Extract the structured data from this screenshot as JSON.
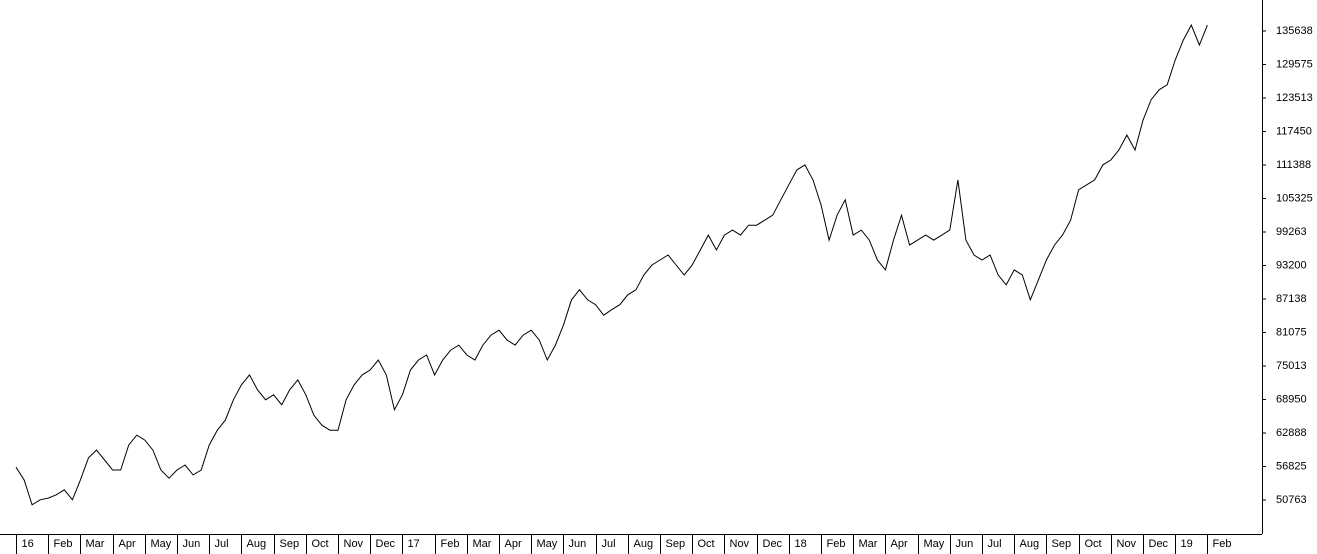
{
  "chart_data": {
    "type": "line",
    "categories": [
      "16",
      null,
      null,
      null,
      "Feb",
      null,
      null,
      null,
      "Mar",
      null,
      null,
      null,
      "Apr",
      null,
      null,
      null,
      "May",
      null,
      null,
      null,
      "Jun",
      null,
      null,
      null,
      "Jul",
      null,
      null,
      null,
      "Aug",
      null,
      null,
      null,
      "Sep",
      null,
      null,
      null,
      "Oct",
      null,
      null,
      null,
      "Nov",
      null,
      null,
      null,
      "Dec",
      null,
      null,
      null,
      "17",
      null,
      null,
      null,
      "Feb",
      null,
      null,
      null,
      "Mar",
      null,
      null,
      null,
      "Apr",
      null,
      null,
      null,
      "May",
      null,
      null,
      null,
      "Jun",
      null,
      null,
      null,
      "Jul",
      null,
      null,
      null,
      "Aug",
      null,
      null,
      null,
      "Sep",
      null,
      null,
      null,
      "Oct",
      null,
      null,
      null,
      "Nov",
      null,
      null,
      null,
      "Dec",
      null,
      null,
      null,
      "18",
      null,
      null,
      null,
      "Feb",
      null,
      null,
      null,
      "Mar",
      null,
      null,
      null,
      "Apr",
      null,
      null,
      null,
      "May",
      null,
      null,
      null,
      "Jun",
      null,
      null,
      null,
      "Jul",
      null,
      null,
      null,
      "Aug",
      null,
      null,
      null,
      "Sep",
      null,
      null,
      null,
      "Oct",
      null,
      null,
      null,
      "Nov",
      null,
      null,
      null,
      "Dec",
      null,
      null,
      null,
      "19",
      null,
      null,
      null,
      "Feb"
    ],
    "values": [
      56700,
      54400,
      49900,
      50800,
      51100,
      51700,
      52600,
      50800,
      54400,
      58400,
      59800,
      58000,
      56200,
      56200,
      60700,
      62500,
      61600,
      59800,
      56200,
      54700,
      56200,
      57100,
      55300,
      56200,
      60700,
      63400,
      65200,
      68900,
      71600,
      73400,
      70700,
      68900,
      69800,
      68000,
      70700,
      72500,
      69800,
      66100,
      64300,
      63400,
      63400,
      68900,
      71600,
      73400,
      74300,
      76100,
      73400,
      67100,
      69800,
      74300,
      76100,
      77000,
      73400,
      76100,
      77900,
      78800,
      77000,
      76100,
      78800,
      80600,
      81500,
      79700,
      78800,
      80600,
      81500,
      79700,
      76100,
      78800,
      82400,
      87000,
      88800,
      87000,
      86100,
      84200,
      85200,
      86100,
      87900,
      88800,
      91500,
      93300,
      94200,
      95100,
      93300,
      91500,
      93300,
      96000,
      98700,
      96000,
      98700,
      99600,
      98700,
      100500,
      100500,
      101400,
      102300,
      105100,
      107800,
      110500,
      111400,
      108700,
      104200,
      97800,
      102300,
      105100,
      98700,
      99600,
      97800,
      94200,
      92400,
      97800,
      102300,
      96900,
      97800,
      98700,
      97800,
      98700,
      99600,
      108700,
      97800,
      95100,
      94200,
      95100,
      91500,
      89700,
      92400,
      91500,
      87000,
      90600,
      94200,
      96900,
      98700,
      101400,
      106900,
      107800,
      108700,
      111400,
      112300,
      114100,
      116800,
      114100,
      119500,
      123200,
      125000,
      125900,
      130400,
      134000,
      136700,
      133100,
      136700
    ],
    "color": "#000000",
    "ylim": [
      44610,
      141250
    ],
    "yticks": [
      50763,
      56825,
      62888,
      68950,
      75013,
      81075,
      87138,
      93200,
      99263,
      105325,
      111388,
      117450,
      123513,
      129575,
      135638
    ]
  }
}
